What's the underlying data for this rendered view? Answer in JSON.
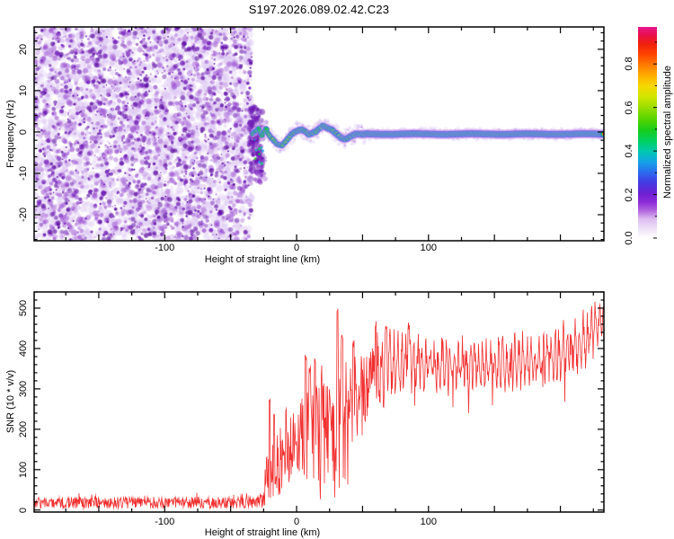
{
  "title": "S197.2026.089.02.42.C23",
  "palette": {
    "background": "#FFFFFF",
    "axis": "#000000",
    "trace_red": "#F23030",
    "noise_purple_dark": "#6A14B4",
    "noise_purple_mid": "#9A4FD0",
    "noise_purple_pale": "#DCC8F0",
    "signal_edge_navy": "#1E0A96"
  },
  "chart_data": [
    {
      "type": "heatmap",
      "panel": "spectrogram",
      "xlabel": "Height of straight line (km)",
      "ylabel": "Frequency (Hz)",
      "xlim": [
        -199,
        233
      ],
      "ylim": [
        -26.3,
        25.4
      ],
      "x_major_ticks": [
        -100,
        0,
        100
      ],
      "y_major_ticks": [
        -20,
        -10,
        0,
        10,
        20
      ],
      "x_minor_step": 25,
      "y_minor_step": 2,
      "noise_region_km": [
        -199,
        -34
      ],
      "signal_path": [
        [
          -33.5,
          -0.3,
          0.4
        ],
        [
          -31,
          0.2,
          0.5
        ],
        [
          -29,
          0.9,
          0.55
        ],
        [
          -27.5,
          -0.2,
          0.5
        ],
        [
          -26,
          -0.9,
          0.55
        ],
        [
          -24.5,
          0.3,
          0.6
        ],
        [
          -23,
          0.8,
          0.6
        ],
        [
          -21.5,
          -0.4,
          0.6
        ],
        [
          -20,
          -1.1,
          0.65
        ],
        [
          -17,
          -2.2,
          0.6
        ],
        [
          -14,
          -3.0,
          0.62
        ],
        [
          -11,
          -3.3,
          0.65
        ],
        [
          -8,
          -2.2,
          0.7
        ],
        [
          -5,
          -1.0,
          0.72
        ],
        [
          -2,
          -0.1,
          0.78
        ],
        [
          1,
          0.4,
          0.8
        ],
        [
          4,
          0.5,
          0.78
        ],
        [
          7,
          0.1,
          0.8
        ],
        [
          9.5,
          -0.6,
          0.85
        ],
        [
          12,
          -0.3,
          0.8
        ],
        [
          14.5,
          0.1,
          0.82
        ],
        [
          17,
          0.7,
          0.75
        ],
        [
          19.5,
          1.5,
          0.78
        ],
        [
          22,
          1.2,
          0.8
        ],
        [
          25,
          0.7,
          0.85
        ],
        [
          28,
          0.2,
          0.85
        ],
        [
          31,
          -0.7,
          0.82
        ],
        [
          34,
          -1.5,
          0.85
        ],
        [
          37,
          -1.7,
          0.85
        ],
        [
          40,
          -1.2,
          0.85
        ],
        [
          43,
          -0.7,
          0.88
        ],
        [
          46,
          -0.4,
          0.9
        ],
        [
          49,
          -0.5,
          0.92
        ],
        [
          52,
          -0.5,
          0.95
        ],
        [
          233,
          -0.5,
          0.95
        ]
      ],
      "colorbar": {
        "label": "Normalized spectral amplitude",
        "ticks": [
          0.0,
          0.2,
          0.4,
          0.6,
          0.8
        ],
        "tick_labels": [
          "0.0",
          "0.2",
          "0.4",
          "0.6",
          "0.8"
        ],
        "range": [
          0,
          0.97
        ],
        "stops": [
          [
            0.0,
            "#FFFFFF"
          ],
          [
            0.04,
            "#F0E4F8"
          ],
          [
            0.09,
            "#DDBCF0"
          ],
          [
            0.13,
            "#B266DE"
          ],
          [
            0.17,
            "#8C2BD8"
          ],
          [
            0.21,
            "#6E20D2"
          ],
          [
            0.26,
            "#4638E2"
          ],
          [
            0.31,
            "#2B6AEE"
          ],
          [
            0.36,
            "#14A2E6"
          ],
          [
            0.41,
            "#00C8B0"
          ],
          [
            0.46,
            "#00D060"
          ],
          [
            0.51,
            "#16CC1C"
          ],
          [
            0.56,
            "#52D400"
          ],
          [
            0.62,
            "#9ADE00"
          ],
          [
            0.67,
            "#D2E600"
          ],
          [
            0.72,
            "#F6D800"
          ],
          [
            0.77,
            "#FFAE00"
          ],
          [
            0.82,
            "#FF7A00"
          ],
          [
            0.87,
            "#FF4400"
          ],
          [
            0.92,
            "#F0200E"
          ],
          [
            0.96,
            "#E81048"
          ],
          [
            1.0,
            "#E8148C"
          ]
        ]
      }
    },
    {
      "type": "line",
      "panel": "snr",
      "xlabel": "Height of straight line (km)",
      "ylabel": "SNR (10 * v/v)",
      "xlim": [
        -199,
        233
      ],
      "ylim": [
        -5,
        540
      ],
      "x_major_ticks": [
        -100,
        0,
        100
      ],
      "y_major_ticks": [
        0,
        100,
        200,
        300,
        400,
        500
      ],
      "x_minor_step": 25,
      "y_minor_step": 20,
      "series": [
        {
          "name": "SNR",
          "color": "#F23030",
          "envelope": [
            [
              -199,
              18,
              14
            ],
            [
              -30,
              18,
              14
            ],
            [
              -26,
              25,
              20
            ],
            [
              -23,
              90,
              80
            ],
            [
              -20,
              120,
              100
            ],
            [
              -14,
              120,
              95
            ],
            [
              -8,
              150,
              110
            ],
            [
              -2,
              160,
              110
            ],
            [
              4,
              185,
              120
            ],
            [
              10,
              200,
              150
            ],
            [
              16,
              215,
              130
            ],
            [
              22,
              230,
              130
            ],
            [
              28,
              240,
              150
            ],
            [
              34,
              260,
              140
            ],
            [
              40,
              270,
              120
            ],
            [
              46,
              285,
              110
            ],
            [
              52,
              300,
              105
            ],
            [
              58,
              320,
              100
            ],
            [
              66,
              345,
              85
            ],
            [
              75,
              360,
              75
            ],
            [
              90,
              365,
              65
            ],
            [
              110,
              358,
              62
            ],
            [
              130,
              355,
              62
            ],
            [
              150,
              360,
              62
            ],
            [
              170,
              368,
              62
            ],
            [
              185,
              375,
              65
            ],
            [
              200,
              390,
              68
            ],
            [
              212,
              405,
              70
            ],
            [
              222,
              430,
              70
            ],
            [
              229,
              465,
              50
            ],
            [
              233,
              480,
              45
            ]
          ],
          "spikes": [
            [
              -20.5,
              275
            ],
            [
              -17,
              240
            ],
            [
              7,
              385
            ],
            [
              10,
              360
            ],
            [
              14,
              380
            ],
            [
              31,
              500
            ],
            [
              34.5,
              440
            ],
            [
              43,
              420
            ],
            [
              60,
              470
            ],
            [
              68,
              460
            ],
            [
              85,
              465
            ],
            [
              230,
              510
            ]
          ]
        }
      ]
    }
  ]
}
